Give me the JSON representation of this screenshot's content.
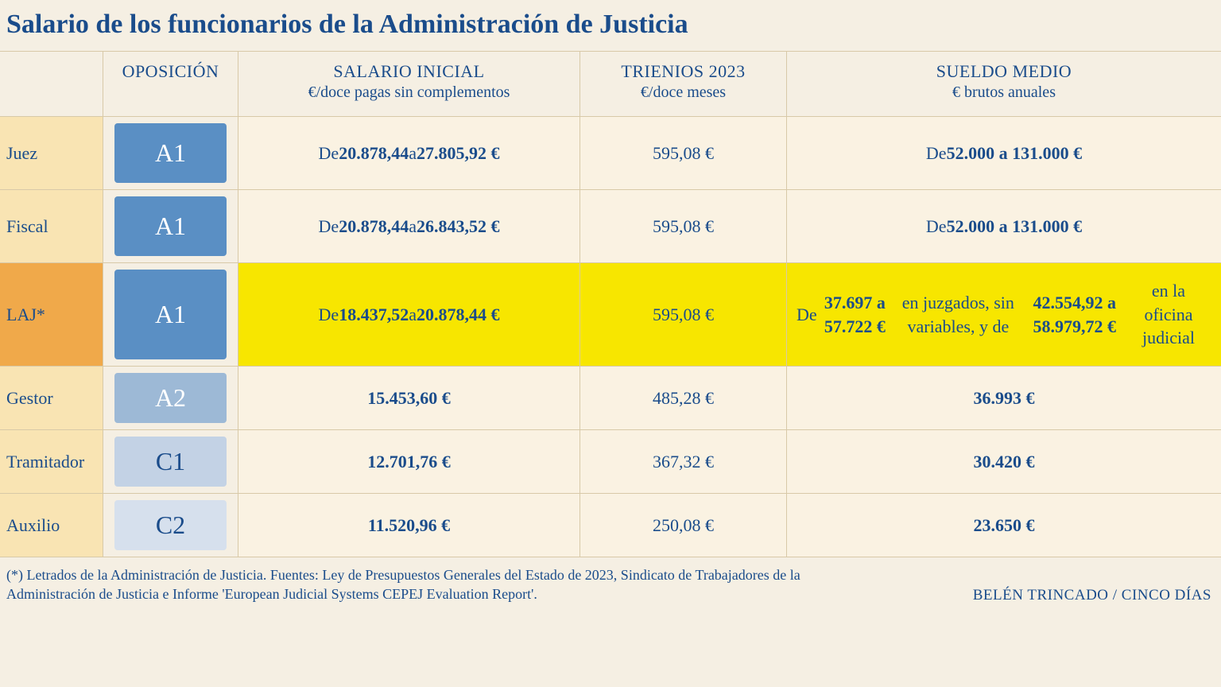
{
  "background_color": "#f5efe3",
  "accent_color": "#1a4c8b",
  "highlight_yellow": "#f7e600",
  "highlight_orange": "#f0a94a",
  "role_bg": "#f9e4b3",
  "data_bg": "#faf2e2",
  "border_color": "#d8c9a8",
  "title": "Salario de los funcionarios de la Administración de Justicia",
  "columns": [
    {
      "main": "",
      "sub": ""
    },
    {
      "main": "OPOSICIÓN",
      "sub": ""
    },
    {
      "main": "SALARIO INICIAL",
      "sub": "€/doce pagas sin complementos"
    },
    {
      "main": "TRIENIOS 2023",
      "sub": "€/doce meses"
    },
    {
      "main": "SUELDO MEDIO",
      "sub": "€ brutos anuales"
    }
  ],
  "rows": [
    {
      "role": "Juez",
      "badge": "A1",
      "badge_bg": "#5a8fc4",
      "salario_inicial_html": "De <b>20.878,44</b> a <b>27.805,92 €</b>",
      "trienios": "595,08 €",
      "sueldo_medio_html": "De <b>52.000 a 131.000 €</b>",
      "highlight": false
    },
    {
      "role": "Fiscal",
      "badge": "A1",
      "badge_bg": "#5a8fc4",
      "salario_inicial_html": "De <b>20.878,44</b> a <b>26.843,52 €</b>",
      "trienios": "595,08 €",
      "sueldo_medio_html": "De <b>52.000 a 131.000 €</b>",
      "highlight": false
    },
    {
      "role": "LAJ*",
      "badge": "A1",
      "badge_bg": "#5a8fc4",
      "salario_inicial_html": "De <b>18.437,52</b> a <b>20.878,44 €</b>",
      "trienios": "595,08 €",
      "sueldo_medio_html": "De <b>37.697 a 57.722 €</b> en juzgados, sin variables, y de <b>42.554,92 a 58.979,72 €</b> en la oficina judicial",
      "highlight": true
    },
    {
      "role": "Gestor",
      "badge": "A2",
      "badge_bg": "#9db9d6",
      "salario_inicial_html": "<b>15.453,60 €</b>",
      "trienios": "485,28 €",
      "sueldo_medio_html": "<b>36.993 €</b>",
      "highlight": false
    },
    {
      "role": "Tramitador",
      "badge": "C1",
      "badge_bg": "#c3d2e5",
      "salario_inicial_html": "<b>12.701,76 €</b>",
      "trienios": "367,32 €",
      "sueldo_medio_html": "<b>30.420 €</b>",
      "highlight": false
    },
    {
      "role": "Auxilio",
      "badge": "C2",
      "badge_bg": "#d6e0ed",
      "salario_inicial_html": "<b>11.520,96 €</b>",
      "trienios": "250,08 €",
      "sueldo_medio_html": "<b>23.650 €</b>",
      "highlight": false
    }
  ],
  "footer": {
    "note": "(*) Letrados de la Administración de Justicia. Fuentes: Ley de Presupuestos Generales del Estado de 2023, Sindicato de Trabajadores de la Administración de Justicia e Informe 'European Judicial Systems CEPEJ Evaluation Report'.",
    "credit": "BELÉN TRINCADO / CINCO DÍAS"
  }
}
